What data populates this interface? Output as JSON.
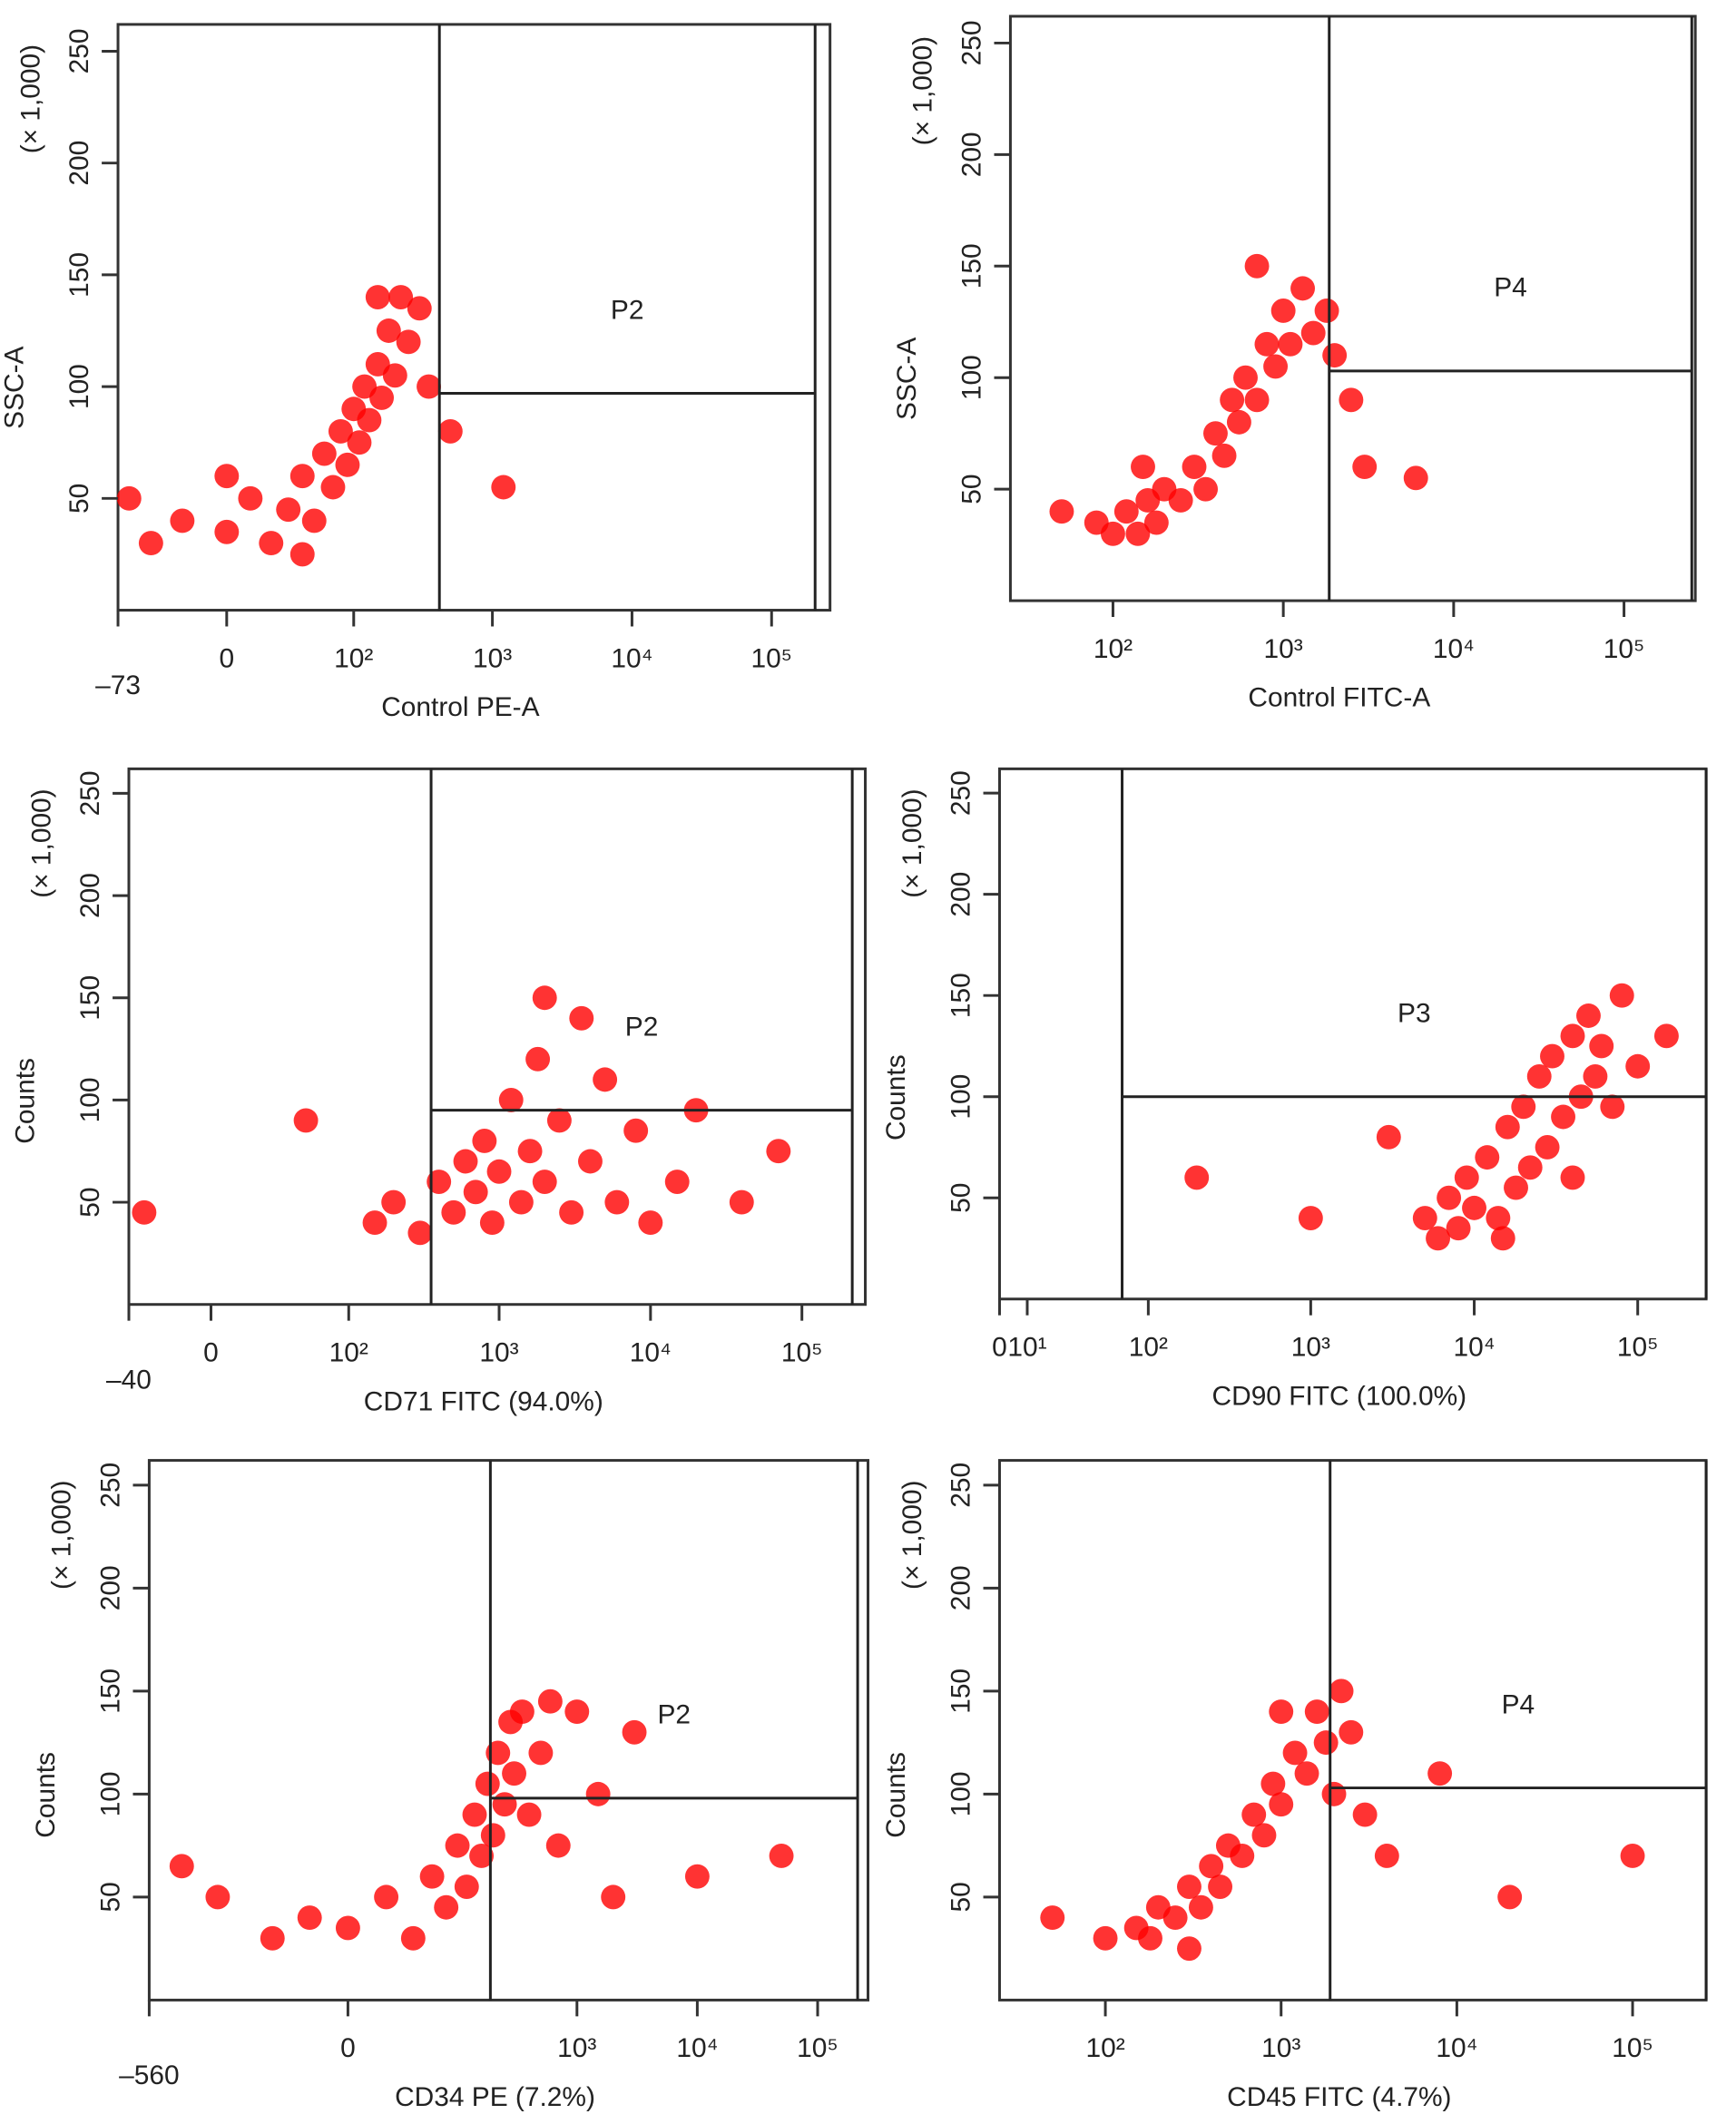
{
  "chart_data": [
    {
      "type": "scatter",
      "x_label": "Control PE-A",
      "y_label": "SSC-A",
      "y_unit": "(× 1,000)",
      "color": "#ff0000",
      "xscale": "biexponential",
      "xlim": [
        -73,
        262144
      ],
      "ylim": [
        0,
        262
      ],
      "xticks": [
        {
          "value": -73,
          "label": "–73"
        },
        0,
        {
          "value": 100,
          "label": "10²"
        },
        {
          "value": 1000,
          "label": "10³"
        },
        {
          "value": 10000,
          "label": "10⁴"
        },
        {
          "value": 100000,
          "label": "10⁵"
        }
      ],
      "yticks": [
        50,
        100,
        150,
        200,
        250
      ],
      "gate": {
        "label": "P2",
        "x": [
          417,
          205000
        ],
        "y": 97
      },
      "x": [
        -40,
        -20,
        0,
        10,
        20,
        30,
        40,
        50,
        60,
        70,
        80,
        90,
        100,
        110,
        120,
        130,
        150,
        160,
        180,
        200,
        220,
        250,
        300,
        350,
        500,
        1200,
        -60,
        40,
        0,
        150
      ],
      "values": [
        30,
        40,
        35,
        50,
        30,
        45,
        60,
        40,
        70,
        55,
        80,
        65,
        90,
        75,
        100,
        85,
        110,
        95,
        125,
        105,
        140,
        120,
        135,
        100,
        80,
        55,
        50,
        25,
        60,
        140
      ]
    },
    {
      "type": "scatter",
      "x_label": "Control FITC-A",
      "y_label": "SSC-A",
      "y_unit": "(× 1,000)",
      "color": "#ff0000",
      "xscale": "log",
      "xlim": [
        25,
        262144
      ],
      "ylim": [
        0,
        262
      ],
      "xticks": [
        {
          "value": 100,
          "label": "10²"
        },
        {
          "value": 1000,
          "label": "10³"
        },
        {
          "value": 10000,
          "label": "10⁴"
        },
        {
          "value": 100000,
          "label": "10⁵"
        }
      ],
      "yticks": [
        50,
        100,
        150,
        200,
        250
      ],
      "gate": {
        "label": "P4",
        "x": [
          1860,
          250000
        ],
        "y": 103
      },
      "x": [
        80,
        100,
        120,
        140,
        160,
        180,
        200,
        250,
        300,
        350,
        400,
        450,
        500,
        550,
        600,
        700,
        800,
        900,
        1000,
        1100,
        1300,
        1500,
        2000,
        2500,
        3000,
        6000,
        50,
        150,
        700,
        1800
      ],
      "values": [
        35,
        30,
        40,
        30,
        45,
        35,
        50,
        45,
        60,
        50,
        75,
        65,
        90,
        80,
        100,
        90,
        115,
        105,
        130,
        115,
        140,
        120,
        110,
        90,
        60,
        55,
        40,
        60,
        150,
        130
      ]
    },
    {
      "type": "scatter",
      "x_label": "CD71 FITC (94.0%)",
      "y_label": "Counts",
      "y_unit": "(× 1,000)",
      "color": "#ff0000",
      "xscale": "biexponential",
      "xlim": [
        -40,
        262144
      ],
      "ylim": [
        0,
        262
      ],
      "xticks": [
        {
          "value": -40,
          "label": "–40"
        },
        0,
        {
          "value": 100,
          "label": "10²"
        },
        {
          "value": 1000,
          "label": "10³"
        },
        {
          "value": 10000,
          "label": "10⁴"
        },
        {
          "value": 100000,
          "label": "10⁵"
        }
      ],
      "yticks": [
        50,
        100,
        150,
        200,
        250
      ],
      "gate": {
        "label": "P2",
        "x": [
          355,
          215000
        ],
        "y": 95
      },
      "x": [
        150,
        200,
        300,
        400,
        500,
        600,
        700,
        800,
        900,
        1000,
        1200,
        1400,
        1600,
        1800,
        2000,
        2500,
        3000,
        3500,
        4000,
        5000,
        6000,
        8000,
        10000,
        15000,
        20000,
        40000,
        70000,
        -30,
        50,
        2000
      ],
      "values": [
        40,
        50,
        35,
        60,
        45,
        70,
        55,
        80,
        40,
        65,
        100,
        50,
        75,
        120,
        60,
        90,
        45,
        140,
        70,
        110,
        50,
        85,
        40,
        60,
        95,
        50,
        75,
        45,
        90,
        150
      ]
    },
    {
      "type": "scatter",
      "x_label": "CD90 FITC (100.0%)",
      "y_label": "Counts",
      "y_unit": "(× 1,000)",
      "color": "#ff0000",
      "xscale": "biexponential",
      "xlim": [
        0,
        262144
      ],
      "ylim": [
        0,
        262
      ],
      "xticks": [
        0,
        {
          "value": 10,
          "label": "10¹"
        },
        {
          "value": 100,
          "label": "10²"
        },
        {
          "value": 1000,
          "label": "10³"
        },
        {
          "value": 10000,
          "label": "10⁴"
        },
        {
          "value": 100000,
          "label": "10⁵"
        }
      ],
      "yticks": [
        50,
        100,
        150,
        200,
        250
      ],
      "gate": {
        "label": "P3",
        "x": [
          68,
          262144
        ],
        "y": 100
      },
      "x": [
        5000,
        6000,
        7000,
        8000,
        9000,
        10000,
        12000,
        14000,
        16000,
        18000,
        20000,
        22000,
        25000,
        28000,
        30000,
        35000,
        40000,
        45000,
        50000,
        55000,
        60000,
        70000,
        80000,
        100000,
        150000,
        200,
        1000,
        3000,
        40000,
        15000
      ],
      "values": [
        40,
        30,
        50,
        35,
        60,
        45,
        70,
        40,
        85,
        55,
        95,
        65,
        110,
        75,
        120,
        90,
        130,
        100,
        140,
        110,
        125,
        95,
        150,
        115,
        130,
        60,
        40,
        80,
        60,
        30
      ]
    },
    {
      "type": "scatter",
      "x_label": "CD34 PE (7.2%)",
      "y_label": "Counts",
      "y_unit": "(× 1,000)",
      "color": "#ff0000",
      "xscale": "biexponential",
      "xlim": [
        -560,
        262144
      ],
      "ylim": [
        0,
        262
      ],
      "xticks": [
        {
          "value": -560,
          "label": "–560"
        },
        0,
        {
          "value": 1000,
          "label": "10³"
        },
        {
          "value": 10000,
          "label": "10⁴"
        },
        {
          "value": 100000,
          "label": "10⁵"
        }
      ],
      "yticks": [
        50,
        100,
        150,
        200,
        250
      ],
      "gate": {
        "label": "P2",
        "x": [
          190,
          215000
        ],
        "y": 98
      },
      "x": [
        -50,
        -20,
        0,
        20,
        40,
        60,
        80,
        100,
        120,
        140,
        160,
        180,
        200,
        220,
        250,
        280,
        300,
        350,
        400,
        500,
        700,
        1000,
        1500,
        3000,
        10000,
        -300,
        -150,
        600,
        2000,
        50000
      ],
      "values": [
        30,
        40,
        35,
        50,
        30,
        60,
        45,
        75,
        55,
        90,
        70,
        105,
        80,
        120,
        95,
        135,
        110,
        140,
        90,
        120,
        75,
        140,
        100,
        130,
        60,
        65,
        50,
        145,
        50,
        70
      ]
    },
    {
      "type": "scatter",
      "x_label": "CD45 FITC (4.7%)",
      "y_label": "Counts",
      "y_unit": "(× 1,000)",
      "color": "#ff0000",
      "xscale": "log",
      "xlim": [
        25,
        262144
      ],
      "ylim": [
        0,
        262
      ],
      "xticks": [
        {
          "value": 100,
          "label": "10²"
        },
        {
          "value": 1000,
          "label": "10³"
        },
        {
          "value": 10000,
          "label": "10⁴"
        },
        {
          "value": 100000,
          "label": "10⁵"
        }
      ],
      "yticks": [
        50,
        100,
        150,
        200,
        250
      ],
      "gate": {
        "label": "P4",
        "x": [
          1900,
          262144
        ],
        "y": 103
      },
      "x": [
        100,
        150,
        180,
        200,
        250,
        300,
        350,
        400,
        450,
        500,
        600,
        700,
        800,
        900,
        1000,
        1200,
        1400,
        1600,
        1800,
        2000,
        2500,
        3000,
        4000,
        8000,
        50,
        300,
        1000,
        2200,
        20000,
        100000
      ],
      "values": [
        30,
        35,
        30,
        45,
        40,
        55,
        45,
        65,
        55,
        75,
        70,
        90,
        80,
        105,
        95,
        120,
        110,
        140,
        125,
        100,
        130,
        90,
        70,
        110,
        40,
        25,
        140,
        150,
        50,
        70
      ]
    }
  ]
}
